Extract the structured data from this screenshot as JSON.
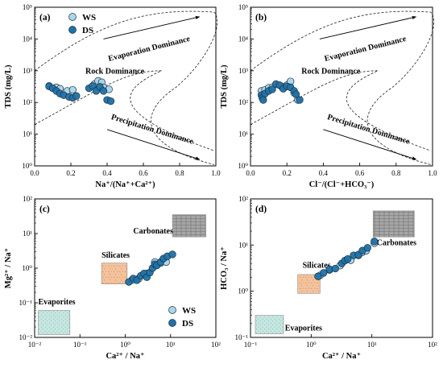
{
  "colors": {
    "ws_fill": "#a9d6ea",
    "ds_fill": "#1d72a8",
    "marker_stroke": "#1f2f3f",
    "carbonates_fill": "#a6a6a6",
    "silicates_fill": "#f4c39c",
    "evaporites_fill": "#c5e6e0"
  },
  "legend": {
    "ws": "WS",
    "ds": "DS"
  },
  "chart_data": [
    {
      "type": "scatter",
      "panel_label": "(a)",
      "xlabel": "Na⁺/(Na⁺+Ca²⁺)",
      "ylabel": "TDS (mg/L)",
      "xscale": "linear",
      "yscale": "log",
      "xlim": [
        0.0,
        1.0
      ],
      "ylim": [
        1,
        100000
      ],
      "xticks": [
        "0.0",
        "0.2",
        "0.4",
        "0.6",
        "0.8",
        "1.0"
      ],
      "yticks": [
        "10⁰",
        "10¹",
        "10²",
        "10³",
        "10⁴",
        "10⁵"
      ],
      "legend_position": "top-left",
      "annotations": [
        "Evaporation Dominance",
        "Rock Dominance",
        "Precipitation Dominance"
      ],
      "series": [
        {
          "name": "WS",
          "points": [
            [
              0.08,
              330
            ],
            [
              0.12,
              300
            ],
            [
              0.14,
              270
            ],
            [
              0.18,
              230
            ],
            [
              0.21,
              250
            ],
            [
              0.33,
              380
            ],
            [
              0.35,
              480
            ],
            [
              0.37,
              430
            ],
            [
              0.38,
              300
            ],
            [
              0.41,
              260
            ]
          ]
        },
        {
          "name": "DS",
          "points": [
            [
              0.08,
              320
            ],
            [
              0.1,
              280
            ],
            [
              0.12,
              230
            ],
            [
              0.14,
              190
            ],
            [
              0.16,
              170
            ],
            [
              0.19,
              150
            ],
            [
              0.21,
              140
            ],
            [
              0.23,
              160
            ],
            [
              0.3,
              280
            ],
            [
              0.32,
              330
            ],
            [
              0.34,
              230
            ],
            [
              0.36,
              310
            ],
            [
              0.38,
              230
            ],
            [
              0.4,
              120
            ],
            [
              0.42,
              110
            ]
          ]
        }
      ]
    },
    {
      "type": "scatter",
      "panel_label": "(b)",
      "xlabel": "Cl⁻/(Cl⁻+HCO₃⁻)",
      "ylabel": "TDS (mg/L)",
      "xscale": "linear",
      "yscale": "log",
      "xlim": [
        0.0,
        1.0
      ],
      "ylim": [
        1,
        100000
      ],
      "xticks": [
        "0.0",
        "0.2",
        "0.4",
        "0.6",
        "0.8",
        "1.0"
      ],
      "yticks": [
        "10⁰",
        "10¹",
        "10²",
        "10³",
        "10⁴",
        "10⁵"
      ],
      "annotations": [
        "Evaporation Dominance",
        "Rock Dominance",
        "Precipitation Dominance"
      ],
      "series": [
        {
          "name": "WS",
          "points": [
            [
              0.06,
              230
            ],
            [
              0.08,
              250
            ],
            [
              0.1,
              290
            ],
            [
              0.12,
              300
            ],
            [
              0.17,
              320
            ],
            [
              0.2,
              350
            ],
            [
              0.22,
              460
            ],
            [
              0.24,
              200
            ],
            [
              0.26,
              120
            ]
          ]
        },
        {
          "name": "DS",
          "points": [
            [
              0.06,
              170
            ],
            [
              0.065,
              140
            ],
            [
              0.07,
              120
            ],
            [
              0.08,
              190
            ],
            [
              0.1,
              230
            ],
            [
              0.12,
              260
            ],
            [
              0.14,
              380
            ],
            [
              0.16,
              350
            ],
            [
              0.18,
              270
            ],
            [
              0.2,
              320
            ],
            [
              0.22,
              300
            ],
            [
              0.24,
              230
            ],
            [
              0.25,
              180
            ],
            [
              0.27,
              120
            ]
          ]
        }
      ]
    },
    {
      "type": "scatter",
      "panel_label": "(c)",
      "xlabel": "Ca²⁺ / Na⁺",
      "ylabel": "Mg²⁺ / Na⁺",
      "xscale": "log",
      "yscale": "log",
      "xlim": [
        0.01,
        100
      ],
      "ylim": [
        0.01,
        100
      ],
      "xticks": [
        "10⁻²",
        "10⁻¹",
        "10⁰",
        "10¹",
        "10²"
      ],
      "yticks": [
        "10⁻²",
        "10⁻¹",
        "10⁰",
        "10¹",
        "10²"
      ],
      "legend_position": "bottom-right",
      "annotations": [
        "Carbonates",
        "Silicates",
        "Evaporites"
      ],
      "regions": [
        {
          "name": "Carbonates",
          "x": [
            11,
            60
          ],
          "y": [
            8,
            35
          ],
          "fill": "carbonates"
        },
        {
          "name": "Silicates",
          "x": [
            0.3,
            1.1
          ],
          "y": [
            0.35,
            1.4
          ],
          "fill": "silicates"
        },
        {
          "name": "Evaporites",
          "x": [
            0.012,
            0.06
          ],
          "y": [
            0.012,
            0.06
          ],
          "fill": "evaporites"
        }
      ],
      "series": [
        {
          "name": "WS",
          "points": [
            [
              1.4,
              0.45
            ],
            [
              2,
              0.5
            ],
            [
              3,
              0.7
            ],
            [
              4.5,
              1.5
            ],
            [
              6,
              1.4
            ],
            [
              7,
              1.8
            ],
            [
              8,
              1.5
            ]
          ]
        },
        {
          "name": "DS",
          "points": [
            [
              1.2,
              0.4
            ],
            [
              1.5,
              0.5
            ],
            [
              1.8,
              0.45
            ],
            [
              2.2,
              0.6
            ],
            [
              2.6,
              0.7
            ],
            [
              3,
              0.55
            ],
            [
              3.5,
              0.75
            ],
            [
              4,
              1.0
            ],
            [
              4.5,
              1.3
            ],
            [
              5,
              1.2
            ],
            [
              6,
              1.5
            ],
            [
              7,
              1.9
            ],
            [
              8.5,
              2.2
            ],
            [
              11,
              2.5
            ]
          ]
        }
      ]
    },
    {
      "type": "scatter",
      "panel_label": "(d)",
      "xlabel": "Ca²⁺ / Na⁺",
      "ylabel": "HCO₃ / Na⁺",
      "xscale": "log",
      "yscale": "log",
      "xlim": [
        0.1,
        100
      ],
      "ylim": [
        0.1,
        100
      ],
      "xticks": [
        "10⁻¹",
        "10⁰",
        "10¹",
        "10²"
      ],
      "yticks": [
        "10⁻¹",
        "10⁰",
        "10¹",
        "10²"
      ],
      "annotations": [
        "Carbonates",
        "Silicates",
        "Evaporites"
      ],
      "regions": [
        {
          "name": "Carbonates",
          "x": [
            10.5,
            50
          ],
          "y": [
            15,
            55
          ],
          "fill": "carbonates"
        },
        {
          "name": "Silicates",
          "x": [
            0.6,
            1.4
          ],
          "y": [
            0.9,
            2.3
          ],
          "fill": "silicates"
        },
        {
          "name": "Evaporites",
          "x": [
            0.12,
            0.35
          ],
          "y": [
            0.12,
            0.3
          ],
          "fill": "evaporites"
        }
      ],
      "series": [
        {
          "name": "WS",
          "points": [
            [
              1.4,
              2.2
            ],
            [
              2,
              2.9
            ],
            [
              3,
              3.6
            ],
            [
              4.5,
              4.7
            ],
            [
              6,
              6
            ],
            [
              7,
              7
            ],
            [
              8,
              7.5
            ],
            [
              11,
              11
            ]
          ]
        },
        {
          "name": "DS",
          "points": [
            [
              1.3,
              2.1
            ],
            [
              1.6,
              2.5
            ],
            [
              2,
              3
            ],
            [
              2.5,
              3.1
            ],
            [
              3.2,
              4
            ],
            [
              3.6,
              4.6
            ],
            [
              4,
              5
            ],
            [
              5,
              6
            ],
            [
              6,
              6.2
            ],
            [
              7,
              7.6
            ],
            [
              8.5,
              8.7
            ],
            [
              11,
              12
            ]
          ]
        }
      ]
    }
  ]
}
